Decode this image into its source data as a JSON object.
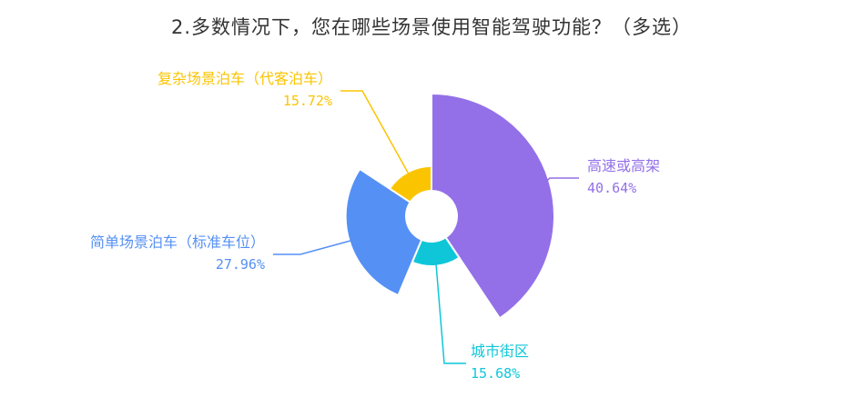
{
  "title": "2.多数情况下，您在哪些场景使用智能驾驶功能？（多选）",
  "chart_data": {
    "type": "pie",
    "variant": "rose",
    "title": "2.多数情况下，您在哪些场景使用智能驾驶功能？（多选）",
    "series": [
      {
        "name": "高速或高架",
        "label": "40.64%",
        "value": 40.64,
        "color": "#9370e8"
      },
      {
        "name": "城市街区",
        "label": "15.68%",
        "value": 15.68,
        "color": "#0fc6d9"
      },
      {
        "name": "简单场景泊车（标准车位）",
        "label": "27.96%",
        "value": 27.96,
        "color": "#5590f5"
      },
      {
        "name": "复杂场景泊车（代客泊车）",
        "label": "15.72%",
        "value": 15.72,
        "color": "#fbc400"
      }
    ]
  }
}
